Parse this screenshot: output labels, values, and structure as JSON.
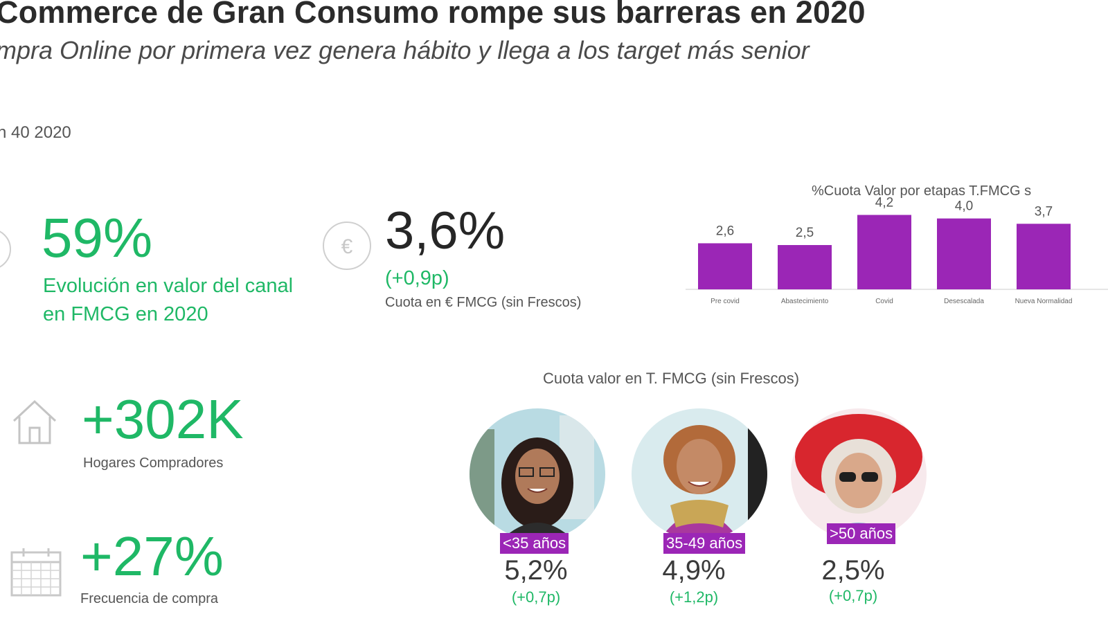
{
  "header": {
    "title": "Commerce de Gran Consumo rompe sus barreras en 2020",
    "subtitle": "mpra Online por primera vez genera hábito y llega a los target más senior",
    "period": "n 40 2020"
  },
  "kpis": {
    "growth": {
      "value": "59%",
      "caption_line1": "Evolución en valor del canal",
      "caption_line2": "en FMCG en 2020"
    },
    "share": {
      "value": "3,6%",
      "delta": "(+0,9p)",
      "caption": "Cuota en € FMCG (sin Frescos)",
      "icon": "euro-icon"
    },
    "households": {
      "value": "+302K",
      "caption": "Hogares Compradores",
      "icon": "house-icon"
    },
    "frequency": {
      "value": "+27%",
      "caption": "Frecuencia de compra",
      "icon": "calendar-icon"
    }
  },
  "chart_data": {
    "type": "bar",
    "title": "%Cuota Valor por etapas T.FMCG s",
    "categories": [
      "Pre covid",
      "Abastecimiento",
      "Covid",
      "Desescalada",
      "Nueva Normalidad"
    ],
    "values": [
      2.6,
      2.5,
      4.2,
      4.0,
      3.7
    ],
    "value_labels": [
      "2,6",
      "2,5",
      "4,2",
      "4,0",
      "3,7"
    ],
    "bar_color": "#9b26b6",
    "ylim": [
      0,
      5
    ],
    "grid": false
  },
  "age_section": {
    "title": "Cuota valor en T. FMCG (sin Frescos)",
    "groups": [
      {
        "label": "<35 años",
        "value": "5,2%",
        "delta": "(+0,7p)"
      },
      {
        "label": "35-49 años",
        "value": "4,9%",
        "delta": "(+1,2p)"
      },
      {
        "label": ">50 años",
        "value": "2,5%",
        "delta": "(+0,7p)"
      }
    ]
  },
  "colors": {
    "accent_green": "#1fb866",
    "accent_purple": "#9b26b6"
  }
}
